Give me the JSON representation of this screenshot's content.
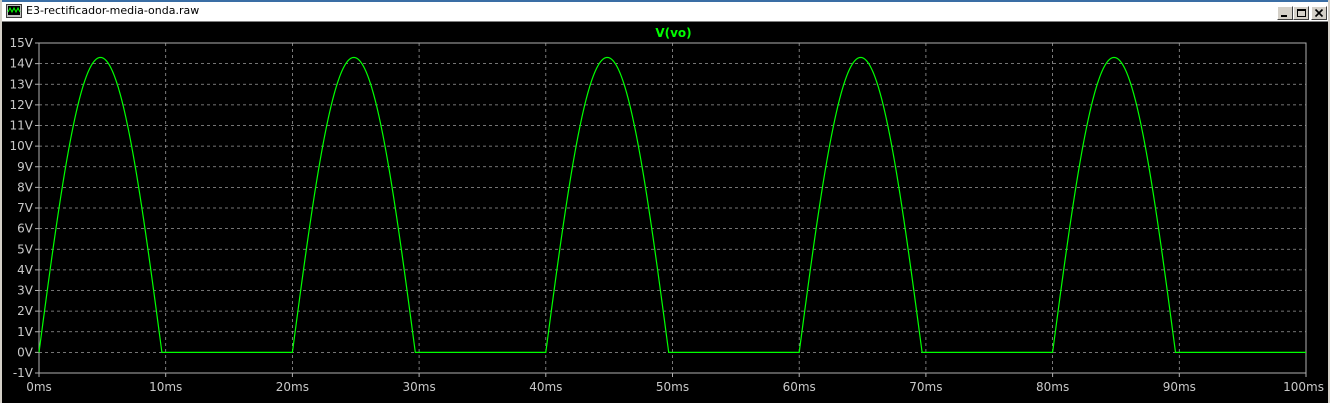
{
  "window": {
    "title": "E3-rectificador-media-onda.raw",
    "controls": [
      "minimize",
      "maximize",
      "close"
    ]
  },
  "colors": {
    "background": "#000000",
    "grid": "#9a9a9a",
    "frame": "#b0b0b0",
    "trace": "#00ff00",
    "tick_text": "#c8c8c8"
  },
  "chart_data": {
    "type": "line",
    "title": "V(vo)",
    "xlabel": "",
    "ylabel": "",
    "xlim": [
      0,
      100
    ],
    "ylim": [
      -1,
      15
    ],
    "x_unit": "ms",
    "y_unit": "V",
    "x_ticks": [
      "0ms",
      "10ms",
      "20ms",
      "30ms",
      "40ms",
      "50ms",
      "60ms",
      "70ms",
      "80ms",
      "90ms",
      "100ms"
    ],
    "y_ticks": [
      "15V",
      "14V",
      "13V",
      "12V",
      "11V",
      "10V",
      "9V",
      "8V",
      "7V",
      "6V",
      "5V",
      "4V",
      "3V",
      "2V",
      "1V",
      "0V",
      "-1V"
    ],
    "grid": true,
    "series": [
      {
        "name": "V(vo)",
        "color": "#00ff00",
        "description": "half-wave rectified sine, 50 Hz",
        "peak": 14.3,
        "period_ms": 20,
        "conduction_ms": [
          [
            0,
            9.7
          ],
          [
            20,
            29.7
          ],
          [
            40,
            49.7
          ],
          [
            60,
            69.7
          ],
          [
            80,
            89.7
          ]
        ],
        "baseline": 0
      }
    ]
  }
}
